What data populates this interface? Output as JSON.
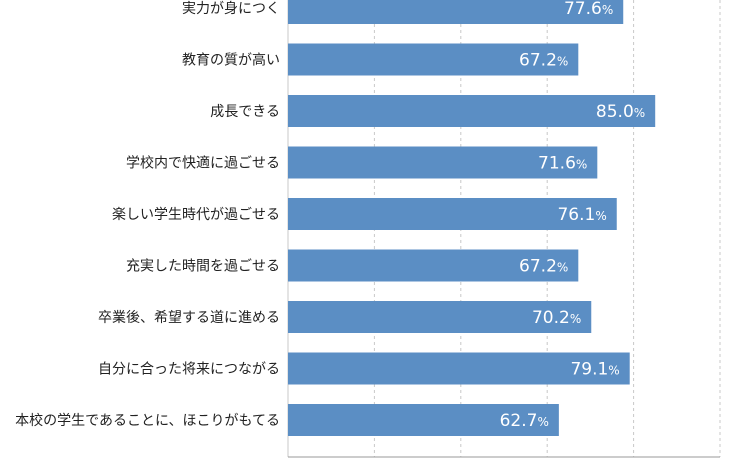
{
  "chart_data": {
    "type": "bar",
    "orientation": "horizontal",
    "categories": [
      "実力が身につく",
      "教育の質が高い",
      "成長できる",
      "学校内で快適に過ごせる",
      "楽しい学生時代が過ごせる",
      "充実した時間を過ごせる",
      "卒業後、希望する道に進める",
      "自分に合った将来につながる",
      "本校の学生であることに、ほこりがもてる"
    ],
    "values": [
      77.6,
      67.2,
      85.0,
      71.6,
      76.1,
      67.2,
      70.2,
      79.1,
      62.7
    ],
    "value_labels": [
      "77.6",
      "67.2",
      "85.0",
      "71.6",
      "76.1",
      "67.2",
      "70.2",
      "79.1",
      "62.7"
    ],
    "unit": "%",
    "xlim": [
      0,
      100
    ],
    "grid": true,
    "colors": {
      "bar": "#5b8ec4",
      "grid": "#c8c8c8",
      "axis": "#999999",
      "label": "#222222",
      "value_text": "#ffffff"
    }
  }
}
